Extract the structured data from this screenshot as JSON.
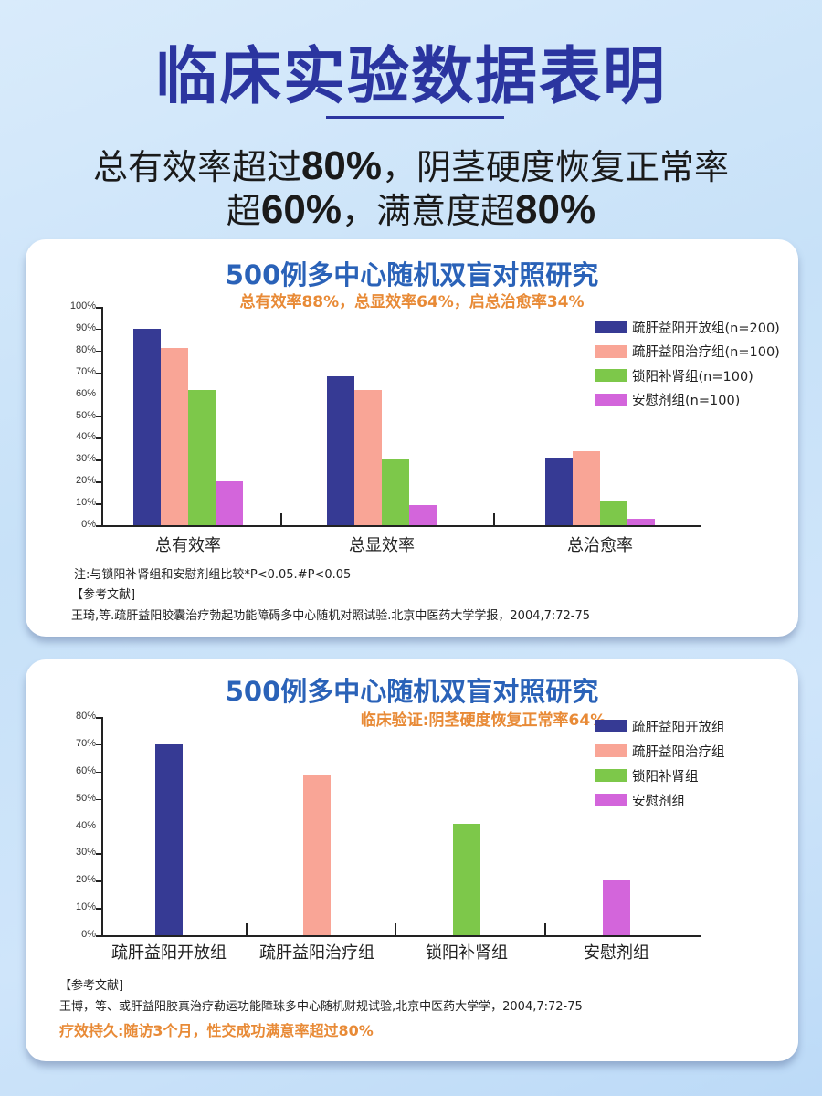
{
  "header": {
    "title": "临床实验数据表明",
    "line1_pre": "总有效率超过",
    "line1_num": "80%",
    "line1_post": "，阴茎硬度恢复正常率",
    "line2_pre": "超",
    "line2_num1": "60%",
    "line2_mid": "，满意度超",
    "line2_num2": "80%"
  },
  "colors": {
    "open_group": "#363a94",
    "treat_group": "#f9a596",
    "suoyang_group": "#7dc84a",
    "placebo_group": "#d365db",
    "title_blue": "#2a62b8",
    "subtitle_orange": "#e88a36",
    "hero_blue": "#2b35a0"
  },
  "card1": {
    "title": "500例多中心随机双盲对照研究",
    "subtitle": "总有效率88%，总显效率64%，启总治愈率34%",
    "note": "注:与锁阳补肾组和安慰剂组比较*P<0.05.#P<0.05",
    "ref_heading": "【参考文献]",
    "ref_text": "王琦,等.疏肝益阳胶囊治疗勃起功能障碍多中心随机对照试验.北京中医药大学学报，2004,7:72-75"
  },
  "card2": {
    "title": "500例多中心随机双盲对照研究",
    "subtitle": "临床验证:阴茎硬度恢复正常率64%",
    "ref_heading": "【参考文献]",
    "ref_text": "王博，等、或肝益阳胶真治疗勒运功能障珠多中心随机财规试验,北京中医药大学学，2004,7:72-75",
    "footer": "疗效持久:随访3个月，性交成功满意率超过80%"
  },
  "chart_data": [
    {
      "type": "bar",
      "title": "500例多中心随机双盲对照研究",
      "subtitle": "总有效率88%，总显效率64%，启总治愈率34%",
      "xlabel": "",
      "ylabel": "",
      "ylim": [
        0,
        100
      ],
      "yticks": [
        "0%",
        "10%",
        "20%",
        "30%",
        "40%",
        "50%",
        "60%",
        "70%",
        "80%",
        "90%",
        "100%"
      ],
      "categories": [
        "总有效率",
        "总显效率",
        "总治愈率"
      ],
      "series": [
        {
          "name": "疏肝益阳开放组(n=200)",
          "values": [
            90,
            68,
            31
          ]
        },
        {
          "name": "疏肝益阳治疗组(n=100)",
          "values": [
            81,
            62,
            34
          ]
        },
        {
          "name": "锁阳补肾组(n=100)",
          "values": [
            62,
            30,
            11
          ]
        },
        {
          "name": "安慰剂组(n=100)",
          "values": [
            20,
            9,
            3
          ]
        }
      ],
      "legend_position": "top-right",
      "grid": false
    },
    {
      "type": "bar",
      "title": "500例多中心随机双盲对照研究",
      "subtitle": "临床验证:阴茎硬度恢复正常率64%",
      "xlabel": "",
      "ylabel": "",
      "ylim": [
        0,
        80
      ],
      "yticks": [
        "0%",
        "10%",
        "20%",
        "30%",
        "40%",
        "50%",
        "60%",
        "70%",
        "80%"
      ],
      "categories": [
        "疏肝益阳开放组",
        "疏肝益阳治疗组",
        "锁阳补肾组",
        "安慰剂组"
      ],
      "values": [
        70,
        59,
        41,
        20
      ],
      "legend": [
        "疏肝益阳开放组",
        "疏肝益阳治疗组",
        "锁阳补肾组",
        "安慰剂组"
      ],
      "legend_position": "top-right",
      "grid": false
    }
  ]
}
